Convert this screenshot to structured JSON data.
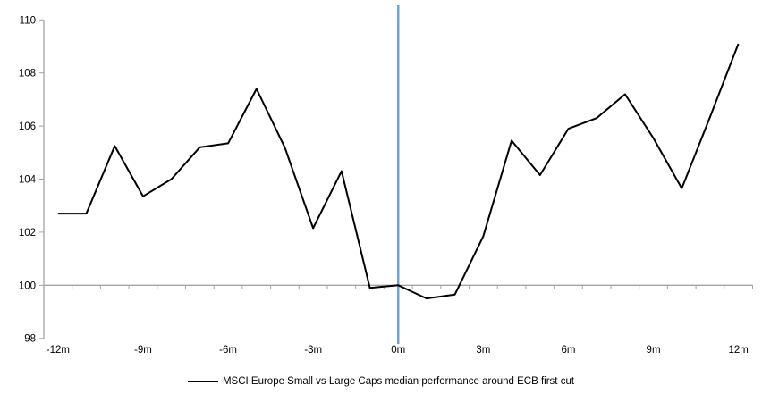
{
  "chart_data": {
    "type": "line",
    "title": "",
    "xlabel": "",
    "ylabel": "",
    "x": [
      -12,
      -11,
      -10,
      -9,
      -8,
      -7,
      -6,
      -5,
      -4,
      -3,
      -2,
      -1,
      0,
      1,
      2,
      3,
      4,
      5,
      6,
      7,
      8,
      9,
      10,
      11,
      12
    ],
    "series": [
      {
        "name": "MSCI Europe Small vs Large Caps median performance around ECB first cut",
        "color": "#000000",
        "values": [
          102.7,
          102.7,
          105.25,
          103.35,
          104.0,
          105.2,
          105.35,
          107.4,
          105.2,
          102.15,
          104.3,
          99.9,
          100.0,
          99.5,
          99.65,
          101.85,
          105.45,
          104.15,
          105.9,
          106.3,
          107.2,
          105.55,
          103.65,
          106.35,
          109.1
        ]
      }
    ],
    "xlim": [
      -12.5,
      12.5
    ],
    "ylim": [
      98,
      110
    ],
    "yticks": [
      98,
      100,
      102,
      104,
      106,
      108,
      110
    ],
    "xtick_positions": [
      -12,
      -9,
      -6,
      -3,
      0,
      3,
      6,
      9,
      12
    ],
    "xtick_labels": [
      "-12m",
      "-9m",
      "-6m",
      "-3m",
      "0m",
      "3m",
      "6m",
      "9m",
      "12m"
    ],
    "minor_xticks_every_month": true,
    "baseline_value": 100,
    "event_line": {
      "x": 0,
      "color": "#74A2CC"
    },
    "axis_color": "#A3A3A3",
    "grid": "baseline-only",
    "legend_position": "bottom-center"
  },
  "legend": {
    "label": "MSCI Europe Small vs Large Caps median performance around ECB first cut"
  }
}
